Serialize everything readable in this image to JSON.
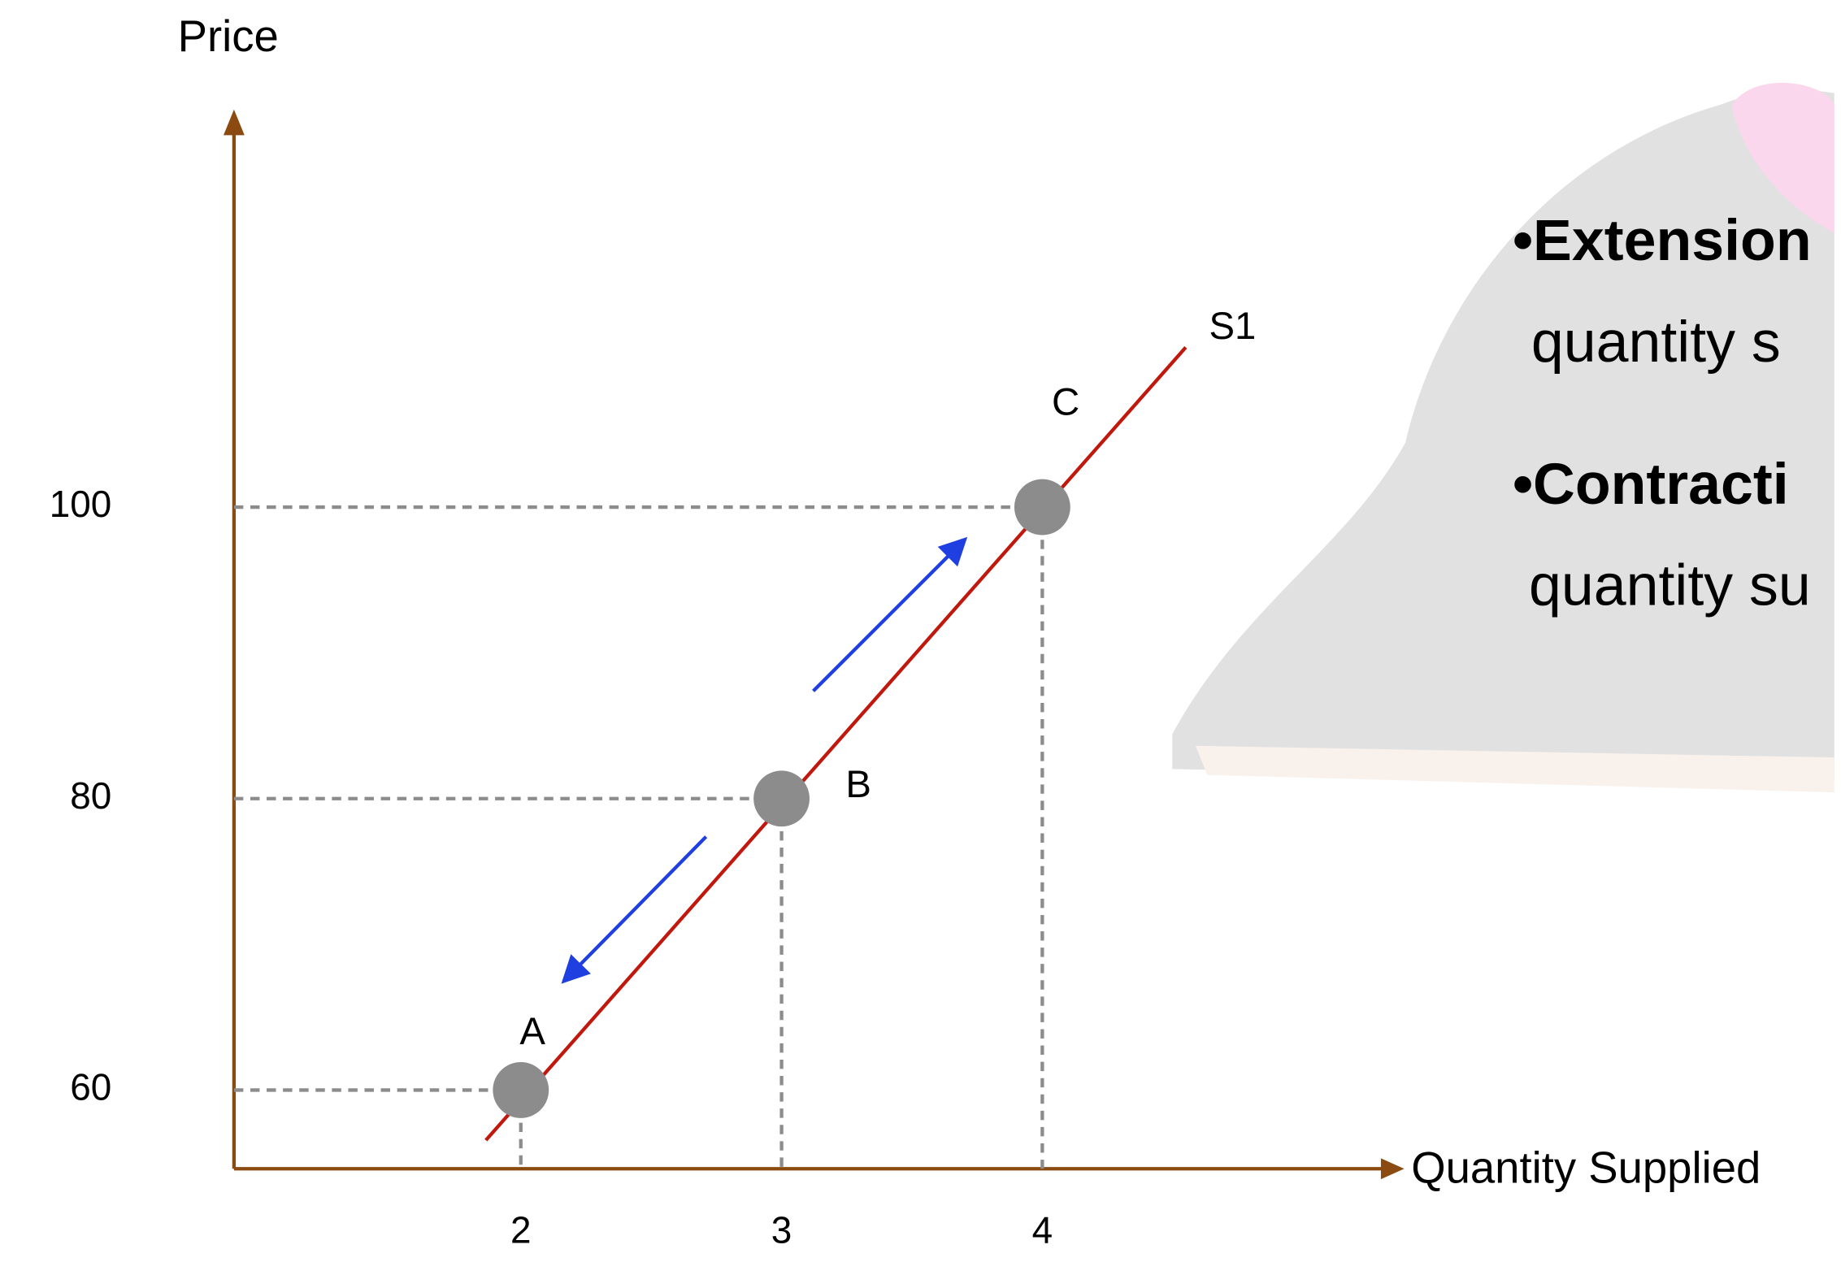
{
  "chart_data": {
    "type": "line",
    "y_label": "Price",
    "x_label": "Quantity Supplied",
    "xlim": [
      0.9,
      5.37
    ],
    "ylim": [
      54.6,
      126.8
    ],
    "xticks": [
      2,
      3,
      4
    ],
    "yticks": [
      60,
      80,
      100
    ],
    "axis_color": "#8b4a0f",
    "series": [
      {
        "name": "S1",
        "color": "#c0180c",
        "x": [
          1.866,
          4.55
        ],
        "values": [
          56.56,
          110.96
        ]
      }
    ],
    "points": {
      "labels": [
        "A",
        "B",
        "C"
      ],
      "x": [
        2,
        3,
        4
      ],
      "values": [
        60,
        80,
        100
      ],
      "color": "#8c8c8c"
    },
    "notes": [
      "•Extension",
      "quantity  s",
      "•Contracti",
      "quantity su"
    ]
  }
}
